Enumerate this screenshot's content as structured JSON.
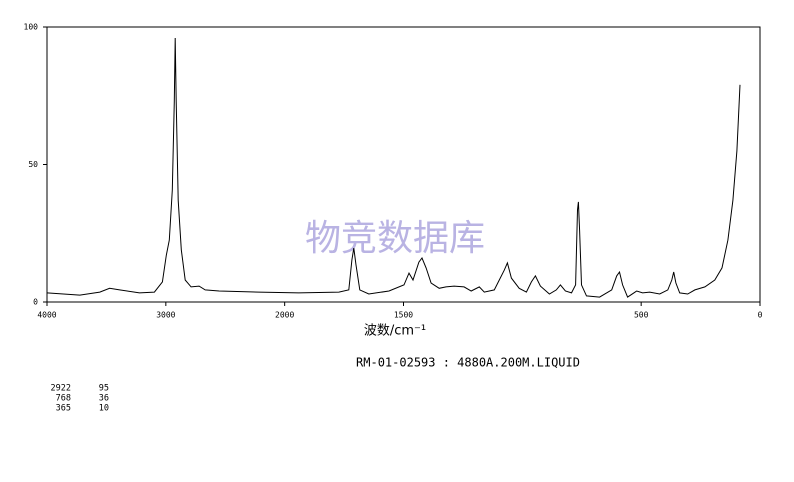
{
  "chart_data": {
    "type": "line",
    "title": "RM-01-02593 : 4880A.200M.LIQUID",
    "x_label": "波数/cm⁻¹",
    "watermark": "物竞数据库",
    "xlim": [
      4000,
      0
    ],
    "x_scale_break": 2000,
    "xticks": [
      4000,
      3000,
      2000,
      1500,
      500,
      0
    ],
    "ylim": [
      0,
      100
    ],
    "yticks": [
      0,
      50,
      100
    ],
    "color": "#000000",
    "x": [
      4000,
      3724,
      3556,
      3473,
      3389,
      3222,
      3096,
      3029,
      2996,
      2971,
      2946,
      2929,
      2921,
      2913,
      2896,
      2870,
      2837,
      2787,
      2720,
      2669,
      2552,
      2218,
      1941,
      1772,
      1730,
      1717,
      1709,
      1700,
      1684,
      1646,
      1561,
      1498,
      1477,
      1460,
      1435,
      1422,
      1405,
      1384,
      1350,
      1321,
      1287,
      1245,
      1215,
      1181,
      1160,
      1118,
      1076,
      1063,
      1046,
      1013,
      983,
      962,
      945,
      924,
      886,
      857,
      840,
      819,
      793,
      776,
      768,
      764,
      759,
      751,
      730,
      675,
      624,
      603,
      591,
      578,
      557,
      519,
      494,
      464,
      422,
      388,
      371,
      363,
      354,
      338,
      304,
      274,
      232,
      190,
      160,
      135,
      114,
      97,
      84
    ],
    "y": [
      3.3,
      2.5,
      3.6,
      5,
      4.4,
      3.3,
      3.6,
      7.3,
      17,
      22.5,
      40.7,
      73,
      96,
      73,
      37,
      19,
      8,
      5.5,
      5.8,
      4.4,
      4,
      3.6,
      3.3,
      3.6,
      4.4,
      15.3,
      19.6,
      13.5,
      4.4,
      2.9,
      4,
      6.2,
      10.5,
      8,
      14.5,
      16,
      12.4,
      6.9,
      5,
      5.5,
      5.8,
      5.5,
      4,
      5.5,
      3.6,
      4.4,
      11.6,
      14.2,
      8.7,
      5,
      3.6,
      7.3,
      9.5,
      5.8,
      2.9,
      4.4,
      6.2,
      4,
      3.3,
      6.2,
      33.5,
      36.4,
      26,
      6.2,
      2.2,
      1.8,
      4.4,
      9.5,
      10.9,
      6.2,
      1.8,
      4,
      3.3,
      3.6,
      2.9,
      4.4,
      8,
      10.9,
      6.9,
      3.3,
      2.9,
      4.4,
      5.5,
      8,
      12.4,
      22.5,
      37,
      55,
      79
    ],
    "peaks": [
      {
        "x": 2922,
        "y": 95
      },
      {
        "x": 768,
        "y": 36
      },
      {
        "x": 365,
        "y": 10
      }
    ]
  }
}
